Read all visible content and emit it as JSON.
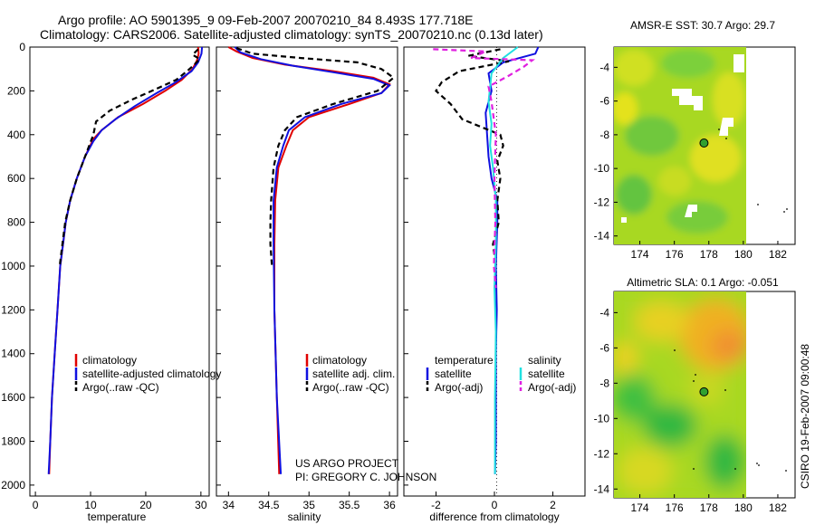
{
  "title_line1": "Argo profile: AO 5901395_9 09-Feb-2007 20070210_84 8.493S 177.718E",
  "title_line2": "Climatology: CARS2006. Satellite-adjusted climatology: synTS_20070210.nc (0.13d later)",
  "credit": "CSIRO 19-Feb-2007 09:00:48",
  "project_line1": "US ARGO PROJECT",
  "project_line2": "PI: GREGORY C. JOHNSON",
  "colors": {
    "red": "#e00000",
    "blue": "#1010e0",
    "black": "#000000",
    "cyan": "#20e0e0",
    "magenta": "#e020e0"
  },
  "chart_data": [
    {
      "type": "line",
      "name": "temperature",
      "xlabel": "temperature",
      "ylabel": "",
      "xlim": [
        -1,
        31.5
      ],
      "ylim": [
        2050,
        0
      ],
      "xticks": [
        0,
        10,
        20,
        30
      ],
      "yticks": [
        0,
        200,
        400,
        600,
        800,
        1000,
        1200,
        1400,
        1600,
        1800,
        2000
      ],
      "legend": [
        "climatology",
        "satellite-adjusted climatology",
        "Argo(..raw -QC)"
      ],
      "series": [
        {
          "name": "climatology",
          "color": "red",
          "dash": "",
          "points": [
            [
              29.5,
              0
            ],
            [
              29.6,
              30
            ],
            [
              29.3,
              60
            ],
            [
              28.5,
              100
            ],
            [
              26.5,
              150
            ],
            [
              23.5,
              200
            ],
            [
              19.5,
              260
            ],
            [
              15,
              320
            ],
            [
              12,
              380
            ],
            [
              10.5,
              420
            ],
            [
              9,
              500
            ],
            [
              7.5,
              600
            ],
            [
              6.3,
              700
            ],
            [
              5.5,
              800
            ],
            [
              5,
              900
            ],
            [
              4.5,
              1000
            ],
            [
              4,
              1200
            ],
            [
              3.5,
              1400
            ],
            [
              3,
              1600
            ],
            [
              2.7,
              1800
            ],
            [
              2.5,
              1950
            ]
          ]
        },
        {
          "name": "satellite-adjusted climatology",
          "color": "blue",
          "dash": "",
          "points": [
            [
              30.2,
              0
            ],
            [
              30.1,
              30
            ],
            [
              29.5,
              70
            ],
            [
              28.3,
              110
            ],
            [
              25.5,
              160
            ],
            [
              22,
              210
            ],
            [
              18,
              270
            ],
            [
              14.5,
              330
            ],
            [
              12,
              380
            ],
            [
              10.5,
              430
            ],
            [
              9,
              500
            ],
            [
              7.5,
              600
            ],
            [
              6.3,
              700
            ],
            [
              5.5,
              800
            ],
            [
              5,
              900
            ],
            [
              4.5,
              1000
            ],
            [
              4,
              1200
            ],
            [
              3.5,
              1400
            ],
            [
              3,
              1600
            ],
            [
              2.7,
              1800
            ],
            [
              2.4,
              1950
            ]
          ]
        },
        {
          "name": "Argo(..raw -QC)",
          "color": "black",
          "dash": "6,4",
          "points": [
            [
              29.5,
              10
            ],
            [
              28.5,
              35
            ],
            [
              29.8,
              55
            ],
            [
              28.8,
              80
            ],
            [
              27.5,
              110
            ],
            [
              25.5,
              150
            ],
            [
              22,
              190
            ],
            [
              17.5,
              240
            ],
            [
              13.5,
              290
            ],
            [
              11,
              340
            ],
            [
              10.5,
              400
            ],
            [
              9,
              500
            ],
            [
              7.5,
              600
            ],
            [
              6.3,
              700
            ],
            [
              5.4,
              800
            ],
            [
              4.9,
              900
            ],
            [
              4.4,
              1000
            ]
          ]
        }
      ]
    },
    {
      "type": "line",
      "name": "salinity",
      "xlabel": "salinity",
      "xlim": [
        33.85,
        36.1
      ],
      "ylim": [
        2050,
        0
      ],
      "xticks": [
        34,
        34.5,
        35,
        35.5,
        36
      ],
      "legend": [
        "climatology",
        "satellite adj. clim.",
        "Argo(..raw -QC)"
      ],
      "series": [
        {
          "name": "climatology",
          "color": "red",
          "dash": "",
          "points": [
            [
              34.0,
              0
            ],
            [
              34.1,
              20
            ],
            [
              34.3,
              50
            ],
            [
              34.7,
              80
            ],
            [
              35.3,
              110
            ],
            [
              35.8,
              140
            ],
            [
              36.0,
              170
            ],
            [
              35.9,
              210
            ],
            [
              35.5,
              260
            ],
            [
              35.0,
              320
            ],
            [
              34.8,
              380
            ],
            [
              34.72,
              450
            ],
            [
              34.62,
              550
            ],
            [
              34.58,
              700
            ],
            [
              34.57,
              900
            ],
            [
              34.57,
              1200
            ],
            [
              34.6,
              1600
            ],
            [
              34.63,
              1950
            ]
          ]
        },
        {
          "name": "satellite adj. clim.",
          "color": "blue",
          "dash": "",
          "points": [
            [
              34.08,
              0
            ],
            [
              34.15,
              25
            ],
            [
              34.4,
              55
            ],
            [
              34.8,
              85
            ],
            [
              35.3,
              115
            ],
            [
              35.8,
              145
            ],
            [
              36.0,
              175
            ],
            [
              35.9,
              210
            ],
            [
              35.4,
              260
            ],
            [
              34.95,
              320
            ],
            [
              34.75,
              380
            ],
            [
              34.68,
              450
            ],
            [
              34.6,
              550
            ],
            [
              34.56,
              700
            ],
            [
              34.56,
              900
            ],
            [
              34.57,
              1200
            ],
            [
              34.6,
              1600
            ],
            [
              34.65,
              1950
            ]
          ]
        },
        {
          "name": "Argo(..raw -QC)",
          "color": "black",
          "dash": "6,4",
          "points": [
            [
              34.1,
              5
            ],
            [
              34.3,
              30
            ],
            [
              34.9,
              50
            ],
            [
              35.6,
              70
            ],
            [
              35.9,
              100
            ],
            [
              36.05,
              140
            ],
            [
              35.85,
              200
            ],
            [
              35.3,
              260
            ],
            [
              34.85,
              320
            ],
            [
              34.7,
              380
            ],
            [
              34.62,
              450
            ],
            [
              34.56,
              550
            ],
            [
              34.53,
              700
            ],
            [
              34.52,
              800
            ],
            [
              34.52,
              900
            ],
            [
              34.54,
              1000
            ]
          ]
        }
      ]
    },
    {
      "type": "line",
      "name": "difference",
      "xlabel": "difference from climatology",
      "xlim": [
        -3.1,
        3.1
      ],
      "ylim": [
        2050,
        0
      ],
      "xticks": [
        -2,
        0,
        2
      ],
      "legend_headers": [
        "temperature",
        "salinity"
      ],
      "legend": [
        "satellite",
        "Argo(-adj)",
        "satellite",
        "Argo(-adj)"
      ],
      "series": [
        {
          "name": "temperature satellite",
          "color": "blue",
          "dash": "",
          "points": [
            [
              1.5,
              0
            ],
            [
              1.4,
              30
            ],
            [
              0.3,
              70
            ],
            [
              -0.2,
              120
            ],
            [
              -0.1,
              200
            ],
            [
              -0.3,
              300
            ],
            [
              -0.25,
              400
            ],
            [
              -0.2,
              500
            ],
            [
              -0.1,
              600
            ],
            [
              0.1,
              700
            ],
            [
              0.1,
              800
            ],
            [
              0.05,
              1000
            ],
            [
              0.08,
              1200
            ],
            [
              0.05,
              1400
            ],
            [
              0.05,
              1600
            ],
            [
              0.05,
              1800
            ],
            [
              0.02,
              1950
            ]
          ]
        },
        {
          "name": "temperature Argo(-adj)",
          "color": "black",
          "dash": "6,4",
          "points": [
            [
              0.2,
              10
            ],
            [
              -0.9,
              40
            ],
            [
              0.5,
              65
            ],
            [
              -1.2,
              110
            ],
            [
              -1.8,
              160
            ],
            [
              -2.0,
              200
            ],
            [
              -1.5,
              260
            ],
            [
              -1.1,
              330
            ],
            [
              0.2,
              400
            ],
            [
              0.3,
              450
            ],
            [
              0.1,
              520
            ],
            [
              0.2,
              600
            ],
            [
              0.1,
              700
            ],
            [
              0.15,
              800
            ],
            [
              -0.05,
              900
            ],
            [
              0.05,
              1000
            ]
          ]
        },
        {
          "name": "salinity satellite",
          "color": "cyan",
          "dash": "",
          "points": [
            [
              0.8,
              0
            ],
            [
              0.3,
              50
            ],
            [
              -0.1,
              120
            ],
            [
              -0.2,
              250
            ],
            [
              -0.1,
              350
            ],
            [
              -0.15,
              450
            ],
            [
              -0.05,
              550
            ],
            [
              0.05,
              700
            ],
            [
              0.05,
              900
            ],
            [
              0.0,
              1100
            ],
            [
              0.05,
              1300
            ],
            [
              0.02,
              1600
            ],
            [
              0.02,
              1950
            ]
          ]
        },
        {
          "name": "salinity Argo(-adj)",
          "color": "magenta",
          "dash": "6,4",
          "points": [
            [
              -2.1,
              10
            ],
            [
              -0.3,
              20
            ],
            [
              -0.8,
              50
            ],
            [
              1.3,
              60
            ],
            [
              1.0,
              90
            ],
            [
              0.5,
              130
            ],
            [
              -0.2,
              180
            ],
            [
              -0.1,
              250
            ],
            [
              0.05,
              400
            ],
            [
              0.0,
              600
            ],
            [
              0.03,
              800
            ],
            [
              -0.02,
              1000
            ],
            [
              0.05,
              1100
            ]
          ]
        }
      ]
    },
    {
      "type": "heatmap",
      "name": "sst_map",
      "title": "AMSR-E SST: 30.7  Argo: 29.7",
      "xlim": [
        172.5,
        183
      ],
      "ylim": [
        -14.5,
        -2.8
      ],
      "xticks": [
        174,
        176,
        178,
        180,
        182
      ],
      "yticks": [
        -4,
        -6,
        -8,
        -10,
        -12,
        -14
      ],
      "argo_position": [
        177.72,
        -8.49
      ]
    },
    {
      "type": "heatmap",
      "name": "sla_map",
      "title": "Altimetric SLA: 0.1  Argo: -0.051",
      "xlim": [
        172.5,
        183
      ],
      "ylim": [
        -14.5,
        -2.8
      ],
      "xticks": [
        174,
        176,
        178,
        180,
        182
      ],
      "yticks": [
        -4,
        -6,
        -8,
        -10,
        -12,
        -14
      ],
      "argo_position": [
        177.72,
        -8.49
      ]
    }
  ]
}
